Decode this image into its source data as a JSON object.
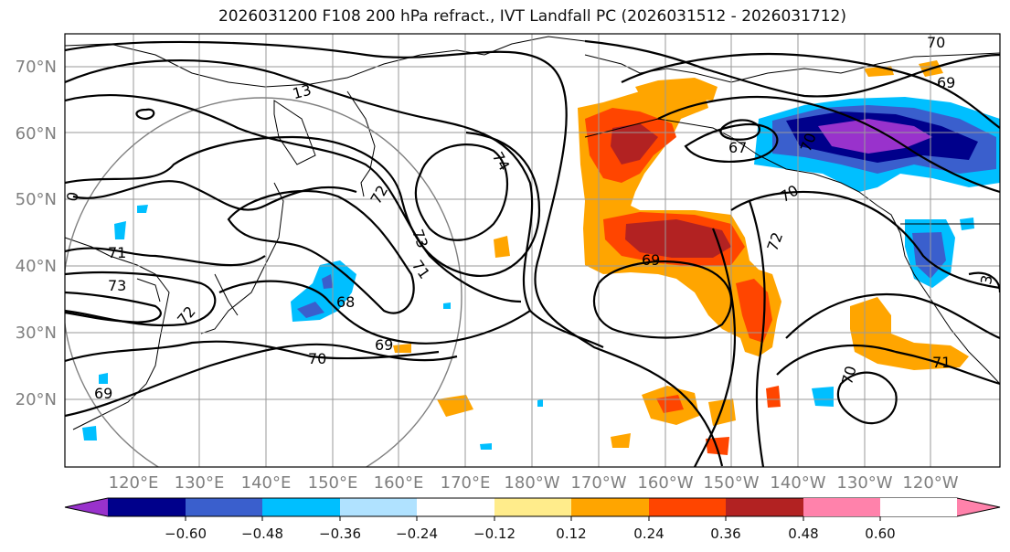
{
  "title": "2026031200 F108 200 hPa refract., IVT Landfall PC (2026031512 - 2026031712)",
  "lat_labels": [
    "70°N",
    "60°N",
    "50°N",
    "40°N",
    "30°N",
    "20°N"
  ],
  "lon_labels": [
    "120°E",
    "130°E",
    "140°E",
    "150°E",
    "160°E",
    "170°E",
    "180°W",
    "170°W",
    "160°W",
    "150°W",
    "140°W",
    "130°W",
    "120°W"
  ],
  "colorbar": {
    "colors": [
      "#9932cc",
      "#00008b",
      "#3a5fcd",
      "#00bfff",
      "#b0e2ff",
      "#ffffff",
      "#ffec8b",
      "#ffa500",
      "#ff4500",
      "#b22222",
      "#ff82ab"
    ],
    "ticks": [
      "−0.60",
      "−0.48",
      "−0.36",
      "−0.24",
      "−0.12",
      "0.12",
      "0.24",
      "0.36",
      "0.48",
      "0.60"
    ]
  },
  "contour_labels": [
    "13",
    "74",
    "72",
    "73",
    "71",
    "0",
    "71",
    "73",
    "72",
    "68",
    "69",
    "70",
    "69",
    "67",
    "70",
    "72",
    "69",
    "70",
    "71",
    "69",
    "70",
    "3",
    "70"
  ]
}
